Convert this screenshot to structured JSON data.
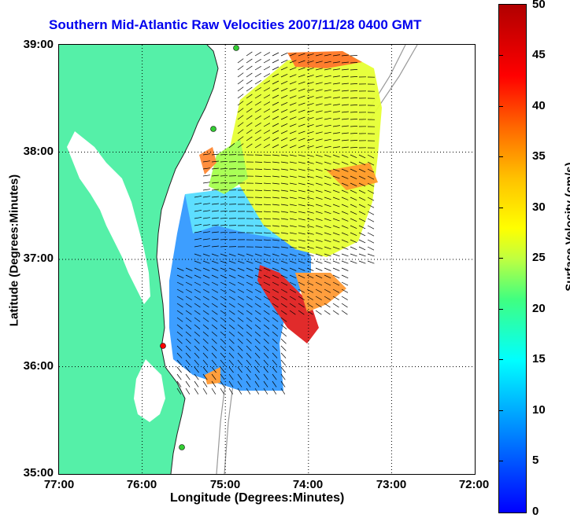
{
  "title": "Southern Mid-Atlantic Raw Velocities 2007/11/28 0400 GMT",
  "y_axis": {
    "title": "Latitude (Degrees:Minutes)",
    "ticks": [
      "39:00",
      "38:00",
      "37:00",
      "36:00",
      "35:00"
    ]
  },
  "x_axis": {
    "title": "Longitude (Degrees:Minutes)",
    "ticks": [
      "77:00",
      "76:00",
      "75:00",
      "74:00",
      "73:00",
      "72:00"
    ]
  },
  "colorbar": {
    "title": "Surface Velocity (cm/s)",
    "ticks": [
      "50",
      "45",
      "40",
      "35",
      "30",
      "25",
      "20",
      "15",
      "10",
      "5",
      "0"
    ],
    "min": 0,
    "max": 50
  },
  "colors": {
    "land": "#55f0a8",
    "water": "#ffffff",
    "title": "#0000ee",
    "station": "#33cc33",
    "station_red": "#ff0000"
  },
  "map_extent": {
    "lon_west": -77,
    "lon_east": -72,
    "lat_south": 35,
    "lat_north": 39
  }
}
